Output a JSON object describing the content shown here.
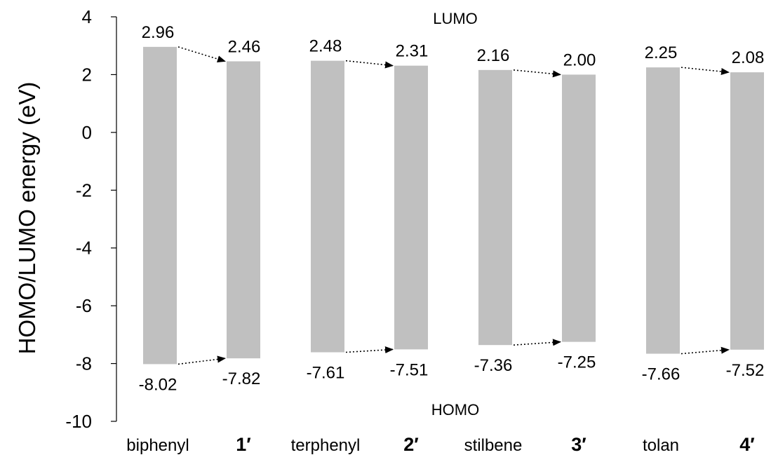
{
  "chart_data": {
    "type": "bar",
    "subtype": "floating-range",
    "categories": [
      "biphenyl",
      "1′",
      "terphenyl",
      "2′",
      "stilbene",
      "3′",
      "tolan",
      "4′"
    ],
    "bold_categories": [
      "1′",
      "2′",
      "3′",
      "4′"
    ],
    "series": [
      {
        "values": [
          2.96,
          2.46,
          2.48,
          2.31,
          2.16,
          2.0,
          2.25,
          2.08
        ]
      },
      {
        "values": [
          -8.02,
          -7.82,
          -7.61,
          -7.51,
          -7.36,
          -7.25,
          -7.66,
          -7.52
        ]
      }
    ],
    "lumo_labels": [
      "2.96",
      "2.46",
      "2.48",
      "2.31",
      "2.16",
      "2.00",
      "2.25",
      "2.08"
    ],
    "homo_labels": [
      "-8.02",
      "-7.82",
      "-7.61",
      "-7.51",
      "-7.36",
      "-7.25",
      "-7.66",
      "-7.52"
    ],
    "arrows": [
      [
        0,
        1
      ],
      [
        2,
        3
      ],
      [
        4,
        5
      ],
      [
        6,
        7
      ]
    ],
    "annotations": {
      "top": "LUMO",
      "bottom": "HOMO"
    },
    "ylabel": "HOMO/LUMO energy (eV)",
    "ylim": [
      -10,
      4
    ],
    "yticks": [
      "4",
      "2",
      "0",
      "-2",
      "-4",
      "-6",
      "-8",
      "-10"
    ],
    "ytick_values": [
      4,
      2,
      0,
      -2,
      -4,
      -6,
      -8,
      -10
    ],
    "grid": false,
    "bar_color": "#c0c0c0"
  }
}
